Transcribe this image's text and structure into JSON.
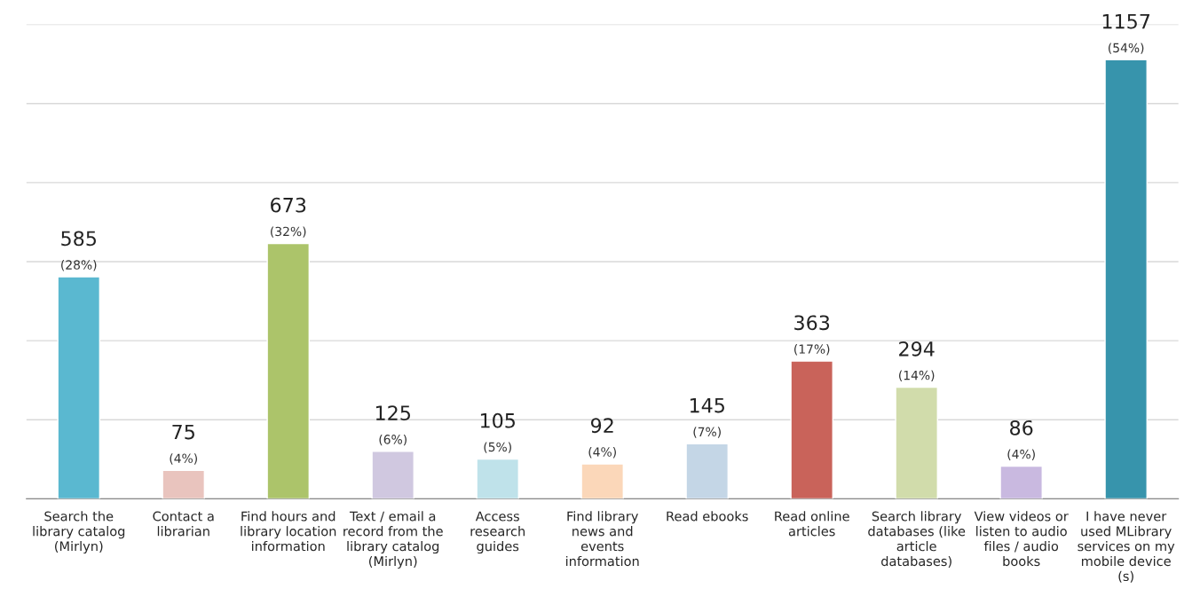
{
  "chart_data": {
    "type": "bar",
    "categories": [
      "Search the\nlibrary catalog\n(Mirlyn)",
      "Contact a\nlibrarian",
      "Find hours and\nlibrary location\ninformation",
      "Text / email a\nrecord from the\nlibrary catalog\n(Mirlyn)",
      "Access\nresearch\nguides",
      "Find library\nnews and\nevents\ninformation",
      "Read ebooks",
      "Read online\narticles",
      "Search library\ndatabases (like\narticle\ndatabases)",
      "View videos or\nlisten to audio\nfiles / audio\nbooks",
      "I have never\nused MLibrary\nservices on my\nmobile device\n(s)"
    ],
    "values": [
      585,
      75,
      673,
      125,
      105,
      92,
      145,
      363,
      294,
      86,
      1157
    ],
    "colors": [
      "#5ab8d0",
      "#e9c4be",
      "#acc46a",
      "#d0c8e0",
      "#bfe2ea",
      "#fbd7b9",
      "#c4d6e6",
      "#c9635a",
      "#d1dcab",
      "#c9b9e0",
      "#3794ac"
    ],
    "value_labels": [
      "585\n(28%)",
      "75\n(4%)",
      "673\n(32%)",
      "125\n(6%)",
      "105\n(5%)",
      "92\n(4%)",
      "145\n(7%)",
      "363\n(17%)",
      "294\n(14%)",
      "86\n(4%)",
      "1157\n(54%)"
    ],
    "ylim": [
      0,
      1250
    ],
    "yticks": [
      {
        "value": 0,
        "label": null
      },
      {
        "value": 208.3,
        "label": null
      },
      {
        "value": 416.7,
        "label": null
      },
      {
        "value": 625,
        "label": null
      },
      {
        "value": 833.3,
        "label": null
      },
      {
        "value": 1041.7,
        "label": null
      },
      {
        "value": 1250,
        "label": null
      }
    ],
    "grid": "y",
    "legend": false
  }
}
